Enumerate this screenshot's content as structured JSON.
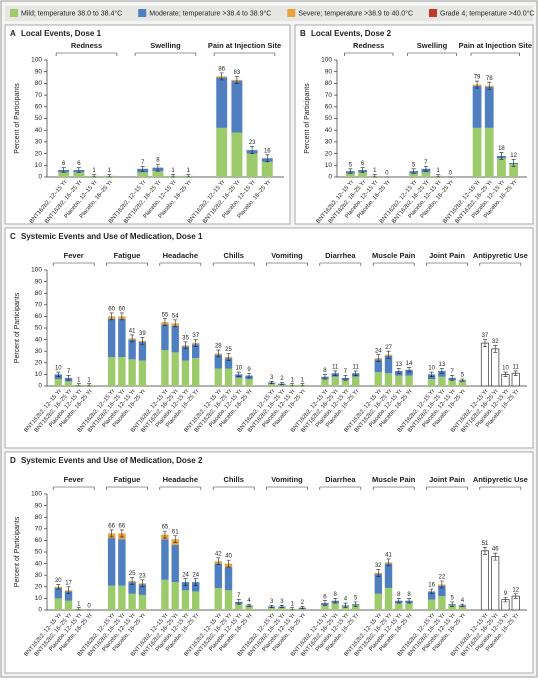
{
  "legend": [
    {
      "name": "Mild; temperature 38.0 to 38.4°C",
      "color": "#9dcb6c"
    },
    {
      "name": "Moderate; temperature >38.4 to 38.9°C",
      "color": "#4f7fc0"
    },
    {
      "name": "Severe; temperature >38.9 to 40.0°C",
      "color": "#e9a23b"
    },
    {
      "name": "Grade 4; temperature >40.0°C",
      "color": "#c0392b"
    }
  ],
  "chart_data": [
    {
      "type": "bar",
      "panel": "A",
      "title": "Local Events, Dose 1",
      "y_label": "Percent of Participants",
      "ylim": [
        0,
        100
      ],
      "yticks": [
        0,
        10,
        20,
        30,
        40,
        50,
        60,
        70,
        80,
        90,
        100
      ],
      "groups": [
        "Redness",
        "Swelling",
        "Pain at Injection Site"
      ],
      "categories": [
        "BNT162b2, 12–15 Yr",
        "BNT162b2, 16–25 Yr",
        "Placebo, 12–15 Yr",
        "Placebo, 16–25 Yr"
      ],
      "series": [
        {
          "values": [
            [
              4,
              4,
              1,
              1
            ],
            [
              4,
              5,
              1,
              1
            ],
            [
              42,
              38,
              20,
              13
            ]
          ]
        },
        {
          "values": [
            [
              2,
              2,
              0,
              0
            ],
            [
              3,
              3,
              0,
              0
            ],
            [
              43,
              44,
              3,
              3
            ]
          ]
        },
        {
          "values": [
            [
              0,
              0,
              0,
              0
            ],
            [
              0,
              0,
              0,
              0
            ],
            [
              1,
              1,
              0,
              0
            ]
          ]
        },
        {
          "values": [
            [
              0,
              0,
              0,
              0
            ],
            [
              0,
              0,
              0,
              0
            ],
            [
              0,
              0,
              0,
              0
            ]
          ]
        }
      ],
      "totals": [
        [
          6,
          6,
          1,
          1
        ],
        [
          7,
          8,
          1,
          1
        ],
        [
          86,
          83,
          23,
          16
        ]
      ],
      "errors": [
        [
          2,
          2,
          1,
          1
        ],
        [
          2,
          3,
          1,
          1
        ],
        [
          3,
          3,
          3,
          3
        ]
      ]
    },
    {
      "type": "bar",
      "panel": "B",
      "title": "Local Events, Dose 2",
      "y_label": "Percent of Participants",
      "ylim": [
        0,
        100
      ],
      "yticks": [
        0,
        10,
        20,
        30,
        40,
        50,
        60,
        70,
        80,
        90,
        100
      ],
      "groups": [
        "Redness",
        "Swelling",
        "Pain at Injection Site"
      ],
      "categories": [
        "BNT162b2, 12–15 Yr",
        "BNT162b2, 16–25 Yr",
        "Placebo, 12–15 Yr",
        "Placebo, 16–25 Yr"
      ],
      "series": [
        {
          "values": [
            [
              3,
              4,
              1,
              0
            ],
            [
              3,
              4,
              1,
              0
            ],
            [
              42,
              42,
              16,
              11
            ]
          ]
        },
        {
          "values": [
            [
              2,
              2,
              0,
              0
            ],
            [
              2,
              3,
              0,
              0
            ],
            [
              36,
              35,
              2,
              1
            ]
          ]
        },
        {
          "values": [
            [
              0,
              0,
              0,
              0
            ],
            [
              0,
              0,
              0,
              0
            ],
            [
              1,
              1,
              0,
              0
            ]
          ]
        },
        {
          "values": [
            [
              0,
              0,
              0,
              0
            ],
            [
              0,
              0,
              0,
              0
            ],
            [
              0,
              0,
              0,
              0
            ]
          ]
        }
      ],
      "totals": [
        [
          5,
          6,
          1,
          0
        ],
        [
          5,
          7,
          1,
          0
        ],
        [
          79,
          78,
          18,
          12
        ]
      ],
      "errors": [
        [
          2,
          2,
          1,
          0
        ],
        [
          2,
          2,
          1,
          0
        ],
        [
          3,
          3,
          3,
          3
        ]
      ]
    },
    {
      "type": "bar",
      "panel": "C",
      "title": "Systemic Events and Use of Medication, Dose 1",
      "y_label": "Percent of Participants",
      "ylim": [
        0,
        100
      ],
      "yticks": [
        0,
        10,
        20,
        30,
        40,
        50,
        60,
        70,
        80,
        90,
        100
      ],
      "groups": [
        "Fever",
        "Fatigue",
        "Headache",
        "Chills",
        "Vomiting",
        "Diarrhea",
        "Muscle Pain",
        "Joint Pain",
        "Antipyretic Use"
      ],
      "categories": [
        "BNT162b2, 12–15 Yr",
        "BNT162b2, 16–25 Yr",
        "Placebo, 12–15 Yr",
        "Placebo, 16–25 Yr"
      ],
      "series": [
        {
          "values": [
            [
              6,
              4,
              1,
              1
            ],
            [
              25,
              25,
              23,
              22
            ],
            [
              31,
              29,
              22,
              24
            ],
            [
              15,
              15,
              7,
              6
            ],
            [
              2,
              1,
              1,
              1
            ],
            [
              6,
              8,
              5,
              8
            ],
            [
              12,
              11,
              9,
              9
            ],
            [
              6,
              8,
              5,
              4
            ],
            [
              null,
              null,
              null,
              null
            ]
          ]
        },
        {
          "values": [
            [
              4,
              3,
              0,
              0
            ],
            [
              33,
              33,
              17,
              16
            ],
            [
              22,
              23,
              12,
              12
            ],
            [
              12,
              9,
              3,
              3
            ],
            [
              1,
              1,
              0,
              0
            ],
            [
              2,
              3,
              2,
              3
            ],
            [
              11,
              15,
              4,
              5
            ],
            [
              4,
              5,
              2,
              1
            ],
            [
              null,
              null,
              null,
              null
            ]
          ]
        },
        {
          "values": [
            [
              0,
              0,
              0,
              0
            ],
            [
              2,
              2,
              1,
              1
            ],
            [
              2,
              2,
              1,
              1
            ],
            [
              1,
              1,
              0,
              0
            ],
            [
              0,
              0,
              0,
              0
            ],
            [
              0,
              0,
              0,
              0
            ],
            [
              1,
              1,
              0,
              0
            ],
            [
              0,
              0,
              0,
              0
            ],
            [
              null,
              null,
              null,
              null
            ]
          ]
        },
        {
          "values": [
            [
              0,
              0,
              0,
              0
            ],
            [
              0,
              0,
              0,
              0
            ],
            [
              0,
              0,
              0,
              0
            ],
            [
              0,
              0,
              0,
              0
            ],
            [
              0,
              0,
              0,
              0
            ],
            [
              0,
              0,
              0,
              0
            ],
            [
              0,
              0,
              0,
              0
            ],
            [
              0,
              0,
              0,
              0
            ],
            [
              null,
              null,
              null,
              null
            ]
          ]
        }
      ],
      "totals": [
        [
          10,
          7,
          1,
          1
        ],
        [
          60,
          60,
          41,
          39
        ],
        [
          55,
          54,
          35,
          37
        ],
        [
          28,
          25,
          10,
          9
        ],
        [
          3,
          2,
          1,
          1
        ],
        [
          8,
          11,
          7,
          11
        ],
        [
          24,
          27,
          13,
          14
        ],
        [
          10,
          13,
          7,
          5
        ],
        [
          37,
          32,
          10,
          11
        ]
      ],
      "errors": [
        [
          2,
          2,
          1,
          1
        ],
        [
          3,
          3,
          3,
          3
        ],
        [
          3,
          3,
          3,
          3
        ],
        [
          3,
          3,
          2,
          2
        ],
        [
          1,
          1,
          1,
          1
        ],
        [
          2,
          2,
          2,
          2
        ],
        [
          3,
          3,
          2,
          2
        ],
        [
          2,
          2,
          2,
          1
        ],
        [
          3,
          3,
          2,
          2
        ]
      ]
    },
    {
      "type": "bar",
      "panel": "D",
      "title": "Systemic Events and Use of Medication, Dose 2",
      "y_label": "Percent of Participants",
      "ylim": [
        0,
        100
      ],
      "yticks": [
        0,
        10,
        20,
        30,
        40,
        50,
        60,
        70,
        80,
        90,
        100
      ],
      "groups": [
        "Fever",
        "Fatigue",
        "Headache",
        "Chills",
        "Vomiting",
        "Diarrhea",
        "Muscle Pain",
        "Joint Pain",
        "Antipyretic Use"
      ],
      "categories": [
        "BNT162b2, 12–15 Yr",
        "BNT162b2, 16–25 Yr",
        "Placebo, 12–15 Yr",
        "Placebo, 16–25 Yr"
      ],
      "series": [
        {
          "values": [
            [
              10,
              8,
              1,
              0
            ],
            [
              21,
              21,
              14,
              13
            ],
            [
              26,
              24,
              17,
              16
            ],
            [
              19,
              17,
              5,
              3
            ],
            [
              2,
              2,
              1,
              1
            ],
            [
              4,
              6,
              3,
              4
            ],
            [
              14,
              19,
              6,
              6
            ],
            [
              9,
              12,
              4,
              3
            ],
            [
              null,
              null,
              null,
              null
            ]
          ]
        },
        {
          "values": [
            [
              9,
              8,
              0,
              0
            ],
            [
              41,
              40,
              10,
              9
            ],
            [
              35,
              32,
              7,
              8
            ],
            [
              21,
              20,
              2,
              1
            ],
            [
              1,
              1,
              0,
              1
            ],
            [
              2,
              2,
              1,
              1
            ],
            [
              17,
              21,
              2,
              2
            ],
            [
              7,
              9,
              1,
              1
            ],
            [
              null,
              null,
              null,
              null
            ]
          ]
        },
        {
          "values": [
            [
              1,
              1,
              0,
              0
            ],
            [
              4,
              5,
              1,
              1
            ],
            [
              4,
              5,
              0,
              0
            ],
            [
              2,
              3,
              0,
              0
            ],
            [
              0,
              0,
              0,
              0
            ],
            [
              0,
              0,
              0,
              0
            ],
            [
              1,
              1,
              0,
              0
            ],
            [
              0,
              1,
              0,
              0
            ],
            [
              null,
              null,
              null,
              null
            ]
          ]
        },
        {
          "values": [
            [
              0,
              0,
              0,
              0
            ],
            [
              0,
              0,
              0,
              0
            ],
            [
              0,
              0,
              0,
              0
            ],
            [
              0,
              0,
              0,
              0
            ],
            [
              0,
              0,
              0,
              0
            ],
            [
              0,
              0,
              0,
              0
            ],
            [
              0,
              0,
              0,
              0
            ],
            [
              0,
              0,
              0,
              0
            ],
            [
              null,
              null,
              null,
              null
            ]
          ]
        }
      ],
      "totals": [
        [
          20,
          17,
          1,
          0
        ],
        [
          66,
          66,
          25,
          23
        ],
        [
          65,
          61,
          24,
          24
        ],
        [
          42,
          40,
          7,
          4
        ],
        [
          3,
          3,
          1,
          2
        ],
        [
          6,
          8,
          4,
          5
        ],
        [
          32,
          41,
          8,
          8
        ],
        [
          16,
          22,
          5,
          4
        ],
        [
          51,
          46,
          9,
          12
        ]
      ],
      "errors": [
        [
          2,
          3,
          1,
          0
        ],
        [
          3,
          3,
          3,
          3
        ],
        [
          3,
          3,
          3,
          3
        ],
        [
          3,
          3,
          2,
          1
        ],
        [
          1,
          1,
          1,
          1
        ],
        [
          2,
          2,
          2,
          2
        ],
        [
          3,
          3,
          2,
          2
        ],
        [
          2,
          3,
          2,
          1
        ],
        [
          3,
          3,
          2,
          2
        ]
      ]
    }
  ]
}
